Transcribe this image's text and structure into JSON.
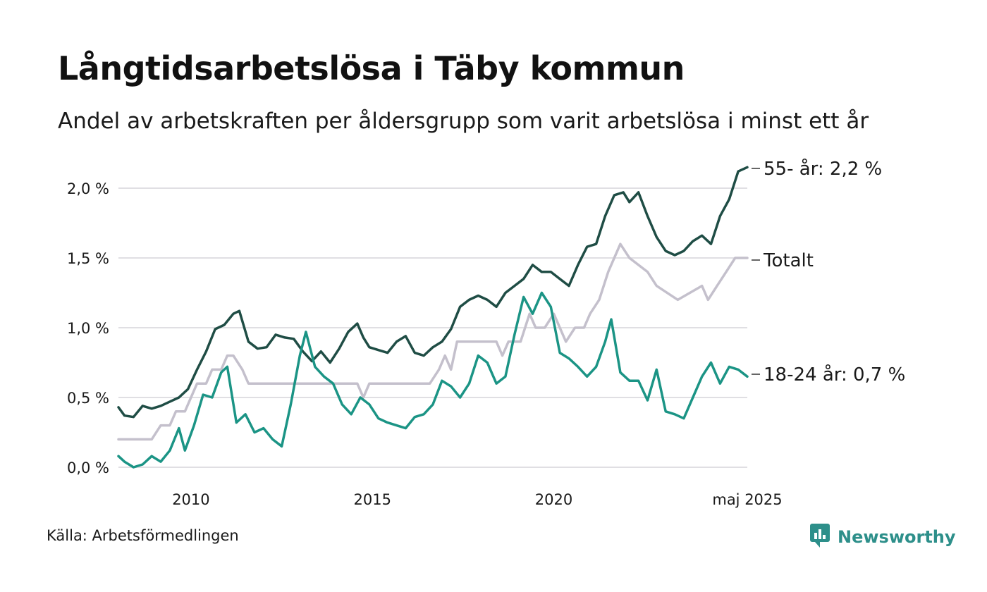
{
  "title": "Långtidsarbetslösa i Täby kommun",
  "subtitle": "Andel av arbetskraften per åldersgrupp som varit arbetslösa i minst ett år",
  "source": "Källa: Arbetsförmedlingen",
  "brand": {
    "name": "Newsworthy",
    "icon": "newsworthy-logo-icon",
    "color": "#2d8f8a"
  },
  "chart_data": {
    "type": "line",
    "title": "Långtidsarbetslösa i Täby kommun",
    "subtitle": "Andel av arbetskraften per åldersgrupp som varit arbetslösa i minst ett år",
    "x_range": [
      "2008-01",
      "2025-05"
    ],
    "ylim": [
      0,
      2.2
    ],
    "y_ticks": [
      {
        "value": 0.0,
        "label": "0,0 %"
      },
      {
        "value": 0.5,
        "label": "0,5 %"
      },
      {
        "value": 1.0,
        "label": "1,0 %"
      },
      {
        "value": 1.5,
        "label": "1,5 %"
      },
      {
        "value": 2.0,
        "label": "2,0 %"
      }
    ],
    "x_ticks": [
      {
        "x": "2010-01",
        "label": "2010"
      },
      {
        "x": "2015-01",
        "label": "2015"
      },
      {
        "x": "2020-01",
        "label": "2020"
      },
      {
        "x": "2025-05",
        "label": "maj 2025"
      }
    ],
    "grid": "horizontal",
    "series": [
      {
        "name": "Totalt",
        "end_label": "Totalt",
        "color": "#c4c0cc",
        "points": [
          [
            "2008-01",
            0.2
          ],
          [
            "2008-12",
            0.2
          ],
          [
            "2009-03",
            0.3
          ],
          [
            "2009-06",
            0.3
          ],
          [
            "2009-08",
            0.4
          ],
          [
            "2009-11",
            0.4
          ],
          [
            "2010-01",
            0.5
          ],
          [
            "2010-03",
            0.6
          ],
          [
            "2010-06",
            0.6
          ],
          [
            "2010-08",
            0.7
          ],
          [
            "2010-11",
            0.7
          ],
          [
            "2011-01",
            0.8
          ],
          [
            "2011-03",
            0.8
          ],
          [
            "2011-06",
            0.7
          ],
          [
            "2011-08",
            0.6
          ],
          [
            "2014-08",
            0.6
          ],
          [
            "2014-10",
            0.5
          ],
          [
            "2014-12",
            0.6
          ],
          [
            "2016-08",
            0.6
          ],
          [
            "2016-11",
            0.7
          ],
          [
            "2017-01",
            0.8
          ],
          [
            "2017-03",
            0.7
          ],
          [
            "2017-05",
            0.9
          ],
          [
            "2018-06",
            0.9
          ],
          [
            "2018-08",
            0.8
          ],
          [
            "2018-10",
            0.9
          ],
          [
            "2019-02",
            0.9
          ],
          [
            "2019-05",
            1.1
          ],
          [
            "2019-07",
            1.0
          ],
          [
            "2019-10",
            1.0
          ],
          [
            "2020-01",
            1.1
          ],
          [
            "2020-03",
            1.0
          ],
          [
            "2020-05",
            0.9
          ],
          [
            "2020-08",
            1.0
          ],
          [
            "2020-11",
            1.0
          ],
          [
            "2021-01",
            1.1
          ],
          [
            "2021-04",
            1.2
          ],
          [
            "2021-07",
            1.4
          ],
          [
            "2021-09",
            1.5
          ],
          [
            "2021-11",
            1.6
          ],
          [
            "2022-02",
            1.5
          ],
          [
            "2022-08",
            1.4
          ],
          [
            "2022-11",
            1.3
          ],
          [
            "2023-06",
            1.2
          ],
          [
            "2024-02",
            1.3
          ],
          [
            "2024-04",
            1.2
          ],
          [
            "2024-07",
            1.3
          ],
          [
            "2024-10",
            1.4
          ],
          [
            "2025-01",
            1.5
          ],
          [
            "2025-05",
            1.5
          ]
        ]
      },
      {
        "name": "55- år",
        "end_label": "55- år: 2,2 %",
        "color": "#1f4d45",
        "points": [
          [
            "2008-01",
            0.43
          ],
          [
            "2008-03",
            0.37
          ],
          [
            "2008-06",
            0.36
          ],
          [
            "2008-09",
            0.44
          ],
          [
            "2008-12",
            0.42
          ],
          [
            "2009-03",
            0.44
          ],
          [
            "2009-06",
            0.47
          ],
          [
            "2009-09",
            0.5
          ],
          [
            "2009-12",
            0.56
          ],
          [
            "2010-03",
            0.7
          ],
          [
            "2010-06",
            0.83
          ],
          [
            "2010-09",
            0.99
          ],
          [
            "2010-12",
            1.02
          ],
          [
            "2011-03",
            1.1
          ],
          [
            "2011-05",
            1.12
          ],
          [
            "2011-08",
            0.9
          ],
          [
            "2011-11",
            0.85
          ],
          [
            "2012-02",
            0.86
          ],
          [
            "2012-05",
            0.95
          ],
          [
            "2012-08",
            0.93
          ],
          [
            "2012-11",
            0.92
          ],
          [
            "2013-02",
            0.83
          ],
          [
            "2013-05",
            0.76
          ],
          [
            "2013-08",
            0.83
          ],
          [
            "2013-11",
            0.75
          ],
          [
            "2014-02",
            0.85
          ],
          [
            "2014-05",
            0.97
          ],
          [
            "2014-08",
            1.03
          ],
          [
            "2014-10",
            0.93
          ],
          [
            "2014-12",
            0.86
          ],
          [
            "2015-03",
            0.84
          ],
          [
            "2015-06",
            0.82
          ],
          [
            "2015-09",
            0.9
          ],
          [
            "2015-12",
            0.94
          ],
          [
            "2016-03",
            0.82
          ],
          [
            "2016-06",
            0.8
          ],
          [
            "2016-09",
            0.86
          ],
          [
            "2016-12",
            0.9
          ],
          [
            "2017-03",
            0.99
          ],
          [
            "2017-06",
            1.15
          ],
          [
            "2017-09",
            1.2
          ],
          [
            "2017-12",
            1.23
          ],
          [
            "2018-03",
            1.2
          ],
          [
            "2018-06",
            1.15
          ],
          [
            "2018-09",
            1.25
          ],
          [
            "2018-12",
            1.3
          ],
          [
            "2019-03",
            1.35
          ],
          [
            "2019-06",
            1.45
          ],
          [
            "2019-09",
            1.4
          ],
          [
            "2019-12",
            1.4
          ],
          [
            "2020-03",
            1.35
          ],
          [
            "2020-06",
            1.3
          ],
          [
            "2020-09",
            1.45
          ],
          [
            "2020-12",
            1.58
          ],
          [
            "2021-03",
            1.6
          ],
          [
            "2021-06",
            1.8
          ],
          [
            "2021-09",
            1.95
          ],
          [
            "2021-12",
            1.97
          ],
          [
            "2022-02",
            1.9
          ],
          [
            "2022-05",
            1.97
          ],
          [
            "2022-08",
            1.8
          ],
          [
            "2022-11",
            1.65
          ],
          [
            "2023-02",
            1.55
          ],
          [
            "2023-05",
            1.52
          ],
          [
            "2023-08",
            1.55
          ],
          [
            "2023-11",
            1.62
          ],
          [
            "2024-02",
            1.66
          ],
          [
            "2024-05",
            1.6
          ],
          [
            "2024-08",
            1.8
          ],
          [
            "2024-11",
            1.92
          ],
          [
            "2025-02",
            2.12
          ],
          [
            "2025-05",
            2.15
          ]
        ]
      },
      {
        "name": "18-24 år",
        "end_label": "18-24 år: 0,7 %",
        "color": "#1b9485",
        "points": [
          [
            "2008-01",
            0.08
          ],
          [
            "2008-03",
            0.04
          ],
          [
            "2008-06",
            0.0
          ],
          [
            "2008-09",
            0.02
          ],
          [
            "2008-12",
            0.08
          ],
          [
            "2009-03",
            0.04
          ],
          [
            "2009-06",
            0.12
          ],
          [
            "2009-09",
            0.28
          ],
          [
            "2009-11",
            0.12
          ],
          [
            "2010-02",
            0.3
          ],
          [
            "2010-05",
            0.52
          ],
          [
            "2010-08",
            0.5
          ],
          [
            "2010-11",
            0.68
          ],
          [
            "2011-01",
            0.72
          ],
          [
            "2011-04",
            0.32
          ],
          [
            "2011-07",
            0.38
          ],
          [
            "2011-10",
            0.25
          ],
          [
            "2012-01",
            0.28
          ],
          [
            "2012-04",
            0.2
          ],
          [
            "2012-07",
            0.15
          ],
          [
            "2012-10",
            0.45
          ],
          [
            "2013-01",
            0.8
          ],
          [
            "2013-03",
            0.97
          ],
          [
            "2013-06",
            0.72
          ],
          [
            "2013-09",
            0.65
          ],
          [
            "2013-12",
            0.6
          ],
          [
            "2014-03",
            0.45
          ],
          [
            "2014-06",
            0.38
          ],
          [
            "2014-09",
            0.5
          ],
          [
            "2014-12",
            0.45
          ],
          [
            "2015-03",
            0.35
          ],
          [
            "2015-06",
            0.32
          ],
          [
            "2015-09",
            0.3
          ],
          [
            "2015-12",
            0.28
          ],
          [
            "2016-03",
            0.36
          ],
          [
            "2016-06",
            0.38
          ],
          [
            "2016-09",
            0.45
          ],
          [
            "2016-12",
            0.62
          ],
          [
            "2017-03",
            0.58
          ],
          [
            "2017-06",
            0.5
          ],
          [
            "2017-09",
            0.6
          ],
          [
            "2017-12",
            0.8
          ],
          [
            "2018-03",
            0.75
          ],
          [
            "2018-06",
            0.6
          ],
          [
            "2018-09",
            0.65
          ],
          [
            "2018-12",
            0.95
          ],
          [
            "2019-03",
            1.22
          ],
          [
            "2019-06",
            1.1
          ],
          [
            "2019-09",
            1.25
          ],
          [
            "2019-12",
            1.15
          ],
          [
            "2020-03",
            0.82
          ],
          [
            "2020-06",
            0.78
          ],
          [
            "2020-09",
            0.72
          ],
          [
            "2020-12",
            0.65
          ],
          [
            "2021-03",
            0.72
          ],
          [
            "2021-06",
            0.9
          ],
          [
            "2021-08",
            1.06
          ],
          [
            "2021-11",
            0.68
          ],
          [
            "2022-02",
            0.62
          ],
          [
            "2022-05",
            0.62
          ],
          [
            "2022-08",
            0.48
          ],
          [
            "2022-11",
            0.7
          ],
          [
            "2023-02",
            0.4
          ],
          [
            "2023-05",
            0.38
          ],
          [
            "2023-08",
            0.35
          ],
          [
            "2023-11",
            0.5
          ],
          [
            "2024-02",
            0.65
          ],
          [
            "2024-05",
            0.75
          ],
          [
            "2024-08",
            0.6
          ],
          [
            "2024-11",
            0.72
          ],
          [
            "2025-02",
            0.7
          ],
          [
            "2025-05",
            0.65
          ]
        ]
      }
    ]
  }
}
